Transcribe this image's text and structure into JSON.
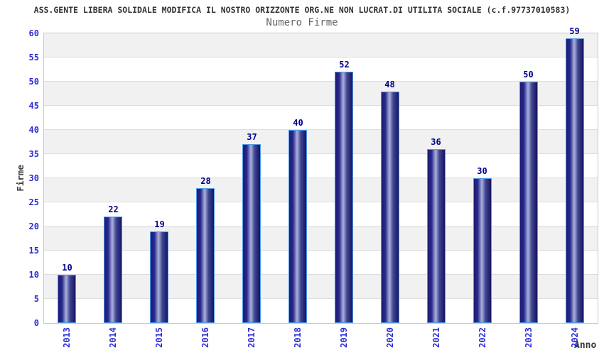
{
  "header": {
    "title": "ASS.GENTE LIBERA SOLIDALE MODIFICA IL NOSTRO ORIZZONTE ORG.NE NON LUCRAT.DI UTILITA SOCIALE (c.f.97737010583)",
    "subtitle": "Numero Firme"
  },
  "chart_data": {
    "type": "bar",
    "title": "Numero Firme",
    "categories": [
      "2013",
      "2014",
      "2015",
      "2016",
      "2017",
      "2018",
      "2019",
      "2020",
      "2021",
      "2022",
      "2023",
      "2024"
    ],
    "values": [
      10,
      22,
      19,
      28,
      37,
      40,
      52,
      48,
      36,
      30,
      50,
      59
    ],
    "xlabel": "Anno",
    "ylabel": "Firme",
    "ylim": [
      0,
      60
    ],
    "ytick_step": 5,
    "yticks": [
      0,
      5,
      10,
      15,
      20,
      25,
      30,
      35,
      40,
      45,
      50,
      55,
      60
    ],
    "grid": "horizontal-bands",
    "legend_position": "none",
    "value_labels": true
  },
  "colors": {
    "axis_tick_label": "#2b2bd8",
    "bar_value_label": "#00008b",
    "bar_gradient_dark": "#1c1c74",
    "bar_gradient_light": "#aab1dd",
    "bar_border": "#4f9be8",
    "band_fill": "#f1f1f1",
    "grid_line": "#dddddd",
    "plot_border": "#c9c9c9",
    "title_text": "#333333",
    "subtitle_text": "#666666",
    "axis_title_text": "#3a3a3a",
    "background": "#ffffff"
  }
}
